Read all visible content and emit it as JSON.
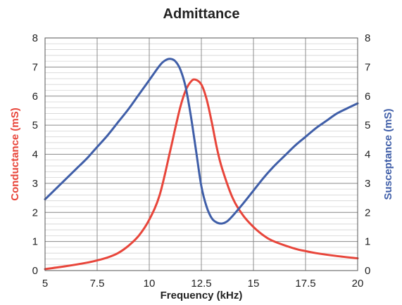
{
  "chart_data": {
    "type": "line",
    "title": "Admittance",
    "xlabel": "Frequency (kHz)",
    "ylabel": "Conductance (mS)",
    "y2label": "Susceptance (mS)",
    "xlim": [
      5,
      20
    ],
    "ylim": [
      0,
      8
    ],
    "y2lim": [
      0,
      8
    ],
    "xticks": [
      "5",
      "7.5",
      "10",
      "12.5",
      "15",
      "17.5",
      "20"
    ],
    "yticks": [
      "0",
      "1",
      "2",
      "3",
      "4",
      "5",
      "6",
      "7",
      "8"
    ],
    "y2ticks": [
      "0",
      "1",
      "2",
      "3",
      "4",
      "5",
      "6",
      "7",
      "8"
    ],
    "grid": true,
    "legend": "none",
    "colors": {
      "conductance": "#e8453a",
      "susceptance": "#3f5ea8",
      "axis_text": "#222222",
      "grid_major": "#8c8c8c",
      "grid_minor": "#d4d4d4"
    },
    "series": [
      {
        "key": "conductance",
        "axis": "left",
        "color": "#e8453a",
        "x": [
          5,
          6,
          7,
          7.5,
          8,
          8.5,
          9,
          9.5,
          10,
          10.5,
          11,
          11.25,
          11.5,
          11.75,
          12,
          12.2,
          12.5,
          12.75,
          13,
          13.25,
          13.5,
          14,
          14.5,
          15,
          15.5,
          16,
          17,
          17.5,
          18,
          19,
          20
        ],
        "y": [
          0.05,
          0.15,
          0.27,
          0.35,
          0.45,
          0.6,
          0.85,
          1.2,
          1.75,
          2.6,
          4.1,
          4.9,
          5.65,
          6.2,
          6.5,
          6.57,
          6.4,
          5.9,
          5.1,
          4.2,
          3.5,
          2.5,
          1.9,
          1.5,
          1.2,
          1.0,
          0.75,
          0.67,
          0.6,
          0.5,
          0.42
        ]
      },
      {
        "key": "susceptance",
        "axis": "right",
        "color": "#3f5ea8",
        "x": [
          5,
          5.5,
          6,
          6.5,
          7,
          7.5,
          8,
          8.5,
          9,
          9.5,
          10,
          10.5,
          10.75,
          11,
          11.25,
          11.5,
          11.75,
          12,
          12.25,
          12.5,
          12.75,
          13,
          13.25,
          13.5,
          13.75,
          14,
          14.5,
          15,
          15.5,
          16,
          16.5,
          17,
          17.5,
          18,
          18.5,
          19,
          19.5,
          20
        ],
        "y": [
          2.45,
          2.8,
          3.15,
          3.5,
          3.85,
          4.25,
          4.65,
          5.1,
          5.55,
          6.05,
          6.55,
          7.05,
          7.22,
          7.28,
          7.2,
          6.9,
          6.3,
          5.3,
          4.1,
          2.9,
          2.2,
          1.8,
          1.65,
          1.62,
          1.7,
          1.88,
          2.3,
          2.75,
          3.2,
          3.6,
          3.95,
          4.3,
          4.6,
          4.9,
          5.15,
          5.4,
          5.58,
          5.75
        ]
      }
    ]
  }
}
